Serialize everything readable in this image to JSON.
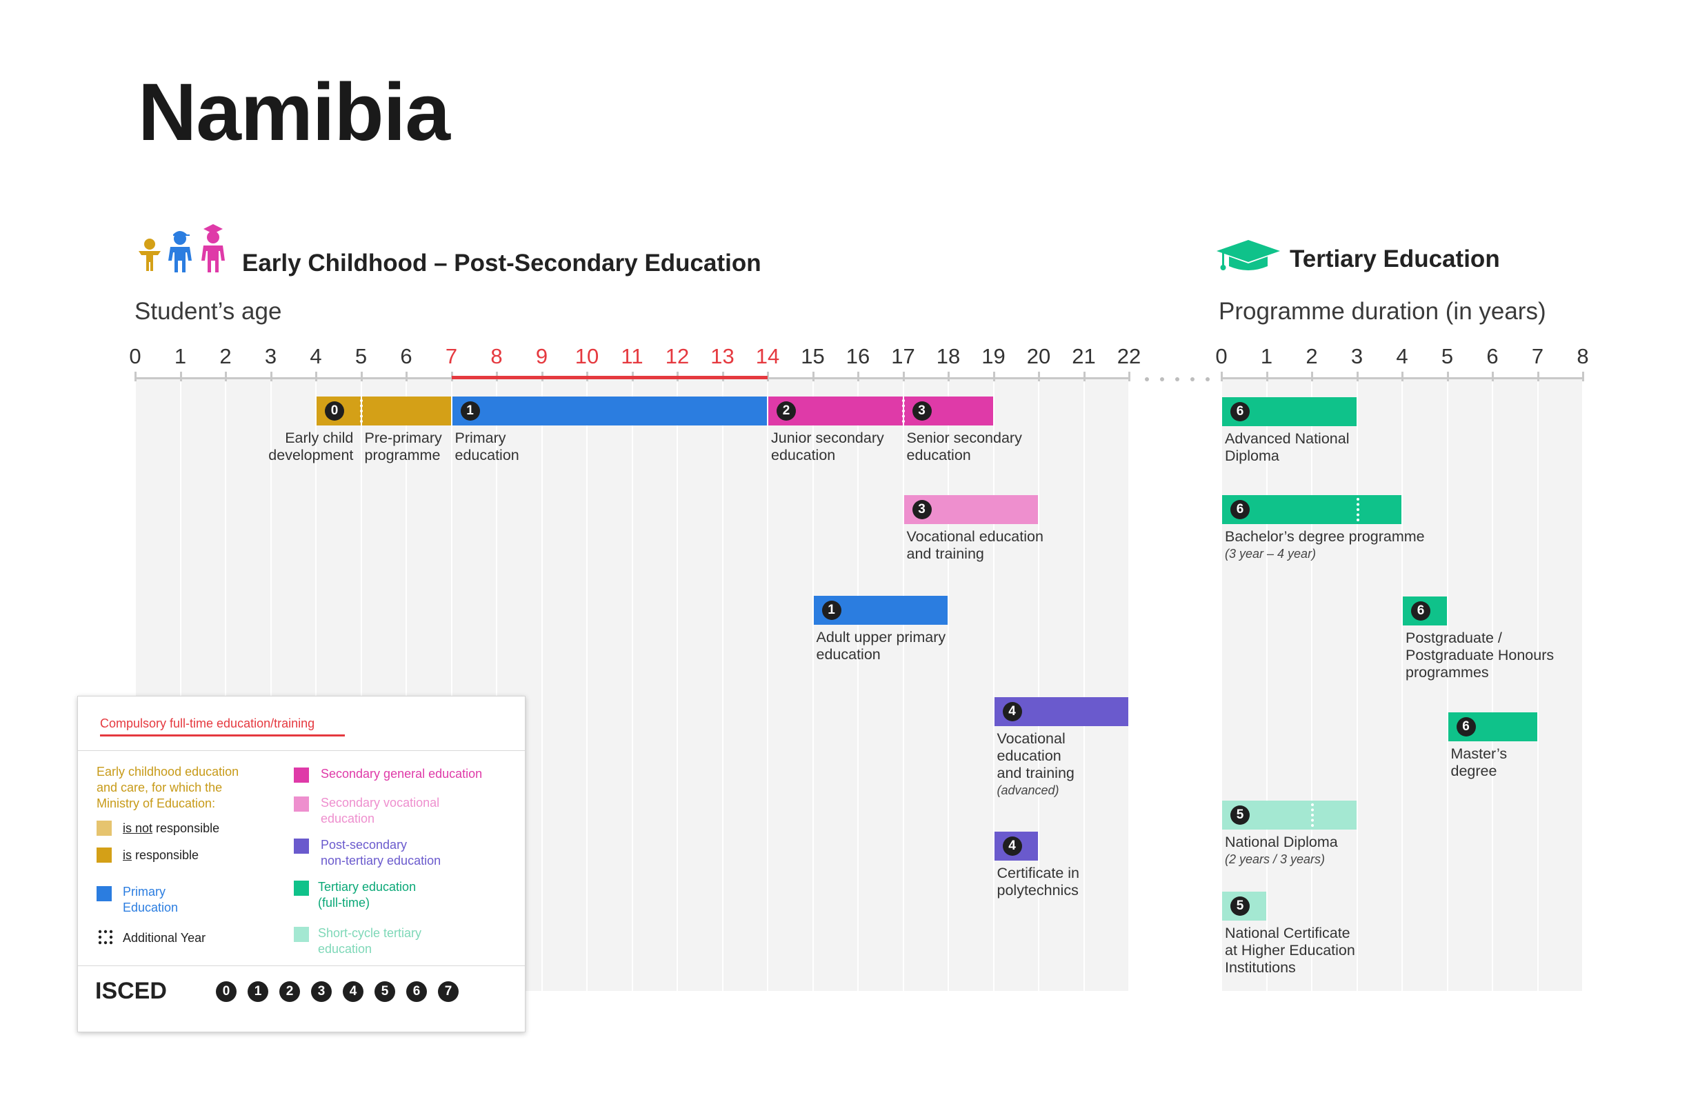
{
  "title": "Namibia",
  "sections": {
    "early": "Early Childhood – Post-Secondary Education",
    "tertiary": "Tertiary Education"
  },
  "axes": {
    "left_title": "Student’s age",
    "right_title": "Programme duration (in years)",
    "left_ticks": [
      "0",
      "1",
      "2",
      "3",
      "4",
      "5",
      "6",
      "7",
      "8",
      "9",
      "10",
      "11",
      "12",
      "13",
      "14",
      "15",
      "16",
      "17",
      "18",
      "19",
      "20",
      "21",
      "22"
    ],
    "right_ticks": [
      "0",
      "1",
      "2",
      "3",
      "4",
      "5",
      "6",
      "7",
      "8"
    ],
    "compulsory_range": [
      7,
      14
    ]
  },
  "colors": {
    "ecce_not_responsible": "#e6c46f",
    "ecce_responsible": "#d4a017",
    "primary": "#2b7de0",
    "secondary_general": "#df3aa8",
    "secondary_vocational": "#ee8fce",
    "post_secondary": "#6a5acd",
    "tertiary": "#0fc28a",
    "short_cycle": "#a4e8d2",
    "compulsory": "#e5393f"
  },
  "chart_data": {
    "type": "table",
    "left_bars": [
      {
        "id": "ecd",
        "start": 4,
        "end": 5,
        "isced": "0",
        "category": "ecce_responsible",
        "label": [
          "Early child",
          "development"
        ]
      },
      {
        "id": "preprimary",
        "start": 5,
        "end": 7,
        "category": "ecce_responsible",
        "label": [
          "Pre-primary",
          "programme"
        ]
      },
      {
        "id": "primary",
        "start": 7,
        "end": 14,
        "isced": "1",
        "category": "primary",
        "label": [
          "Primary",
          "education"
        ]
      },
      {
        "id": "junior",
        "start": 14,
        "end": 17,
        "isced": "2",
        "category": "secondary_general",
        "label": [
          "Junior secondary",
          "education"
        ]
      },
      {
        "id": "senior",
        "start": 17,
        "end": 19,
        "isced": "3",
        "category": "secondary_general",
        "label": [
          "Senior secondary",
          "education"
        ]
      },
      {
        "id": "voc",
        "start": 17,
        "end": 20,
        "isced": "3",
        "category": "secondary_vocational",
        "label": [
          "Vocational education",
          "and training"
        ]
      },
      {
        "id": "adult",
        "start": 15,
        "end": 18,
        "isced": "1",
        "category": "primary",
        "label": [
          "Adult upper primary",
          "education"
        ]
      },
      {
        "id": "vocadv",
        "start": 19,
        "end": 22,
        "isced": "4",
        "category": "post_secondary",
        "label": [
          "Vocational",
          "education",
          "and training"
        ],
        "note": "(advanced)"
      },
      {
        "id": "poly",
        "start": 19,
        "end": 20,
        "isced": "4",
        "category": "post_secondary",
        "label": [
          "Certificate in",
          "polytechnics"
        ]
      }
    ],
    "right_bars": [
      {
        "id": "adv",
        "start": 0,
        "end": 3,
        "isced": "6",
        "category": "tertiary",
        "label": [
          "Advanced National",
          "Diploma"
        ]
      },
      {
        "id": "bach",
        "start": 0,
        "end": 4,
        "isced": "6",
        "category": "tertiary",
        "additional_year_at": 3,
        "label": [
          "Bachelor’s degree programme"
        ],
        "note": "(3 year – 4 year)"
      },
      {
        "id": "pg",
        "start": 4,
        "end": 5,
        "isced": "6",
        "category": "tertiary",
        "label": [
          "Postgraduate /",
          "Postgraduate Honours",
          "programmes"
        ]
      },
      {
        "id": "master",
        "start": 5,
        "end": 7,
        "isced": "6",
        "category": "tertiary",
        "label": [
          "Master’s",
          "degree"
        ]
      },
      {
        "id": "natdip",
        "start": 0,
        "end": 3,
        "isced": "5",
        "category": "short_cycle",
        "additional_year_at": 2,
        "label": [
          "National Diploma"
        ],
        "note": "(2 years / 3 years)"
      },
      {
        "id": "natcert",
        "start": 0,
        "end": 1,
        "isced": "5",
        "category": "short_cycle",
        "label": [
          "National Certificate",
          "at Higher Education",
          "Institutions"
        ]
      }
    ]
  },
  "legend": {
    "compulsory": "Compulsory full-time education/training",
    "ecce_title": [
      "Early childhood education",
      "and care, for which the",
      "Ministry of Education:"
    ],
    "not_resp_a": "is not",
    "not_resp_b": " responsible",
    "resp_a": "is",
    "resp_b": " responsible",
    "primary": [
      "Primary",
      "Education"
    ],
    "additional": "Additional Year",
    "sec_general": "Secondary general education",
    "sec_vocational": [
      "Secondary vocational",
      "education"
    ],
    "post_sec": [
      "Post-secondary",
      "non-tertiary education"
    ],
    "tertiary": [
      "Tertiary education",
      "(full-time)"
    ],
    "short_cycle": [
      "Short-cycle tertiary",
      "education"
    ],
    "isced": "ISCED",
    "isced_levels": [
      "0",
      "1",
      "2",
      "3",
      "4",
      "5",
      "6",
      "7"
    ]
  }
}
